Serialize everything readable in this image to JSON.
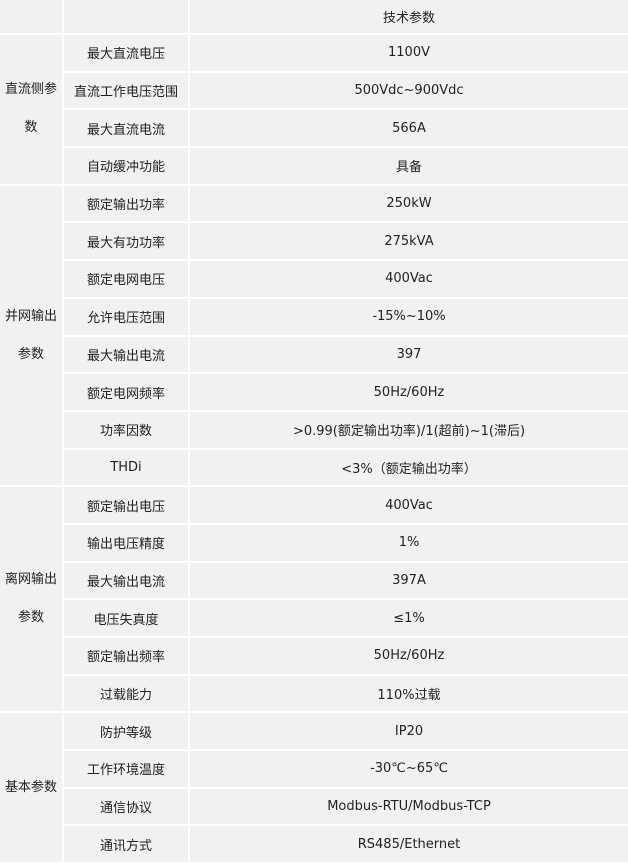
{
  "title": "技术参数",
  "groups": [
    {
      "name": "直流侧参数",
      "name_lines": [
        "直流侧参",
        "数"
      ],
      "rows": [
        {
          "label": "最大直流电压",
          "value": "1100V"
        },
        {
          "label": "直流工作电压范围",
          "value": "500Vdc~900Vdc"
        },
        {
          "label": "最大直流电流",
          "value": "566A"
        },
        {
          "label": "自动缓冲功能",
          "value": "具备"
        }
      ]
    },
    {
      "name": "并网输出参数",
      "name_lines": [
        "并网输出",
        "参数"
      ],
      "rows": [
        {
          "label": "额定输出功率",
          "value": "250kW"
        },
        {
          "label": "最大有功功率",
          "value": "275kVA"
        },
        {
          "label": "额定电网电压",
          "value": "400Vac"
        },
        {
          "label": "允许电压范围",
          "value": "-15%~10%"
        },
        {
          "label": "最大输出电流",
          "value": "397"
        },
        {
          "label": "额定电网频率",
          "value": "50Hz/60Hz"
        },
        {
          "label": "功率因数",
          "value": ">0.99(额定输出功率)/1(超前)~1(滞后)"
        },
        {
          "label": "THDi",
          "value": "<3%（额定输出功率）"
        }
      ]
    },
    {
      "name": "离网输出参数",
      "name_lines": [
        "离网输出",
        "参数"
      ],
      "rows": [
        {
          "label": "额定输出电压",
          "value": "400Vac"
        },
        {
          "label": "输出电压精度",
          "value": "1%"
        },
        {
          "label": "最大输出电流",
          "value": "397A"
        },
        {
          "label": "电压失真度",
          "value": "≤1%"
        },
        {
          "label": "额定输出频率",
          "value": "50Hz/60Hz"
        },
        {
          "label": "过载能力",
          "value": "110%过载"
        }
      ]
    },
    {
      "name": "基本参数",
      "name_lines": [
        "基本参数"
      ],
      "rows": [
        {
          "label": "防护等级",
          "value": "IP20"
        },
        {
          "label": "工作环境温度",
          "value": "-30℃~65℃"
        },
        {
          "label": "通信协议",
          "value": "Modbus-RTU/Modbus-TCP"
        },
        {
          "label": "通讯方式",
          "value": "RS485/Ethernet"
        }
      ]
    }
  ]
}
